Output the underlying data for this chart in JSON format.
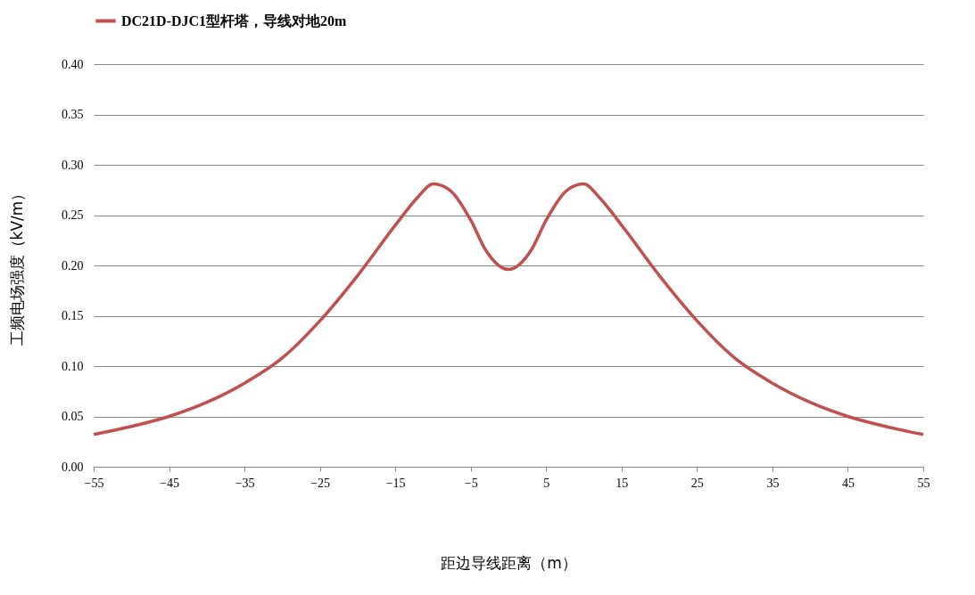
{
  "chart_data": {
    "type": "line",
    "xlabel": "距边导线距离（m）",
    "ylabel": "工频电场强度（kV/m）",
    "x": [
      -55,
      -50,
      -45,
      -40,
      -35,
      -30,
      -25,
      -20,
      -15,
      -12,
      -10,
      -8,
      -5,
      -3,
      0,
      3,
      5,
      8,
      10,
      12,
      15,
      20,
      25,
      30,
      35,
      40,
      45,
      50,
      55
    ],
    "series": [
      {
        "name": "DC21D-DJC1型杆塔，导线对地20m",
        "color": "#c0504d",
        "values": [
          0.032,
          0.04,
          0.05,
          0.064,
          0.083,
          0.108,
          0.145,
          0.19,
          0.24,
          0.268,
          0.281,
          0.276,
          0.245,
          0.215,
          0.196,
          0.215,
          0.245,
          0.276,
          0.281,
          0.268,
          0.24,
          0.19,
          0.145,
          0.108,
          0.083,
          0.064,
          0.05,
          0.04,
          0.032
        ]
      }
    ],
    "xlim": [
      -55,
      55
    ],
    "xticks": [
      -55,
      -45,
      -35,
      -25,
      -15,
      -5,
      5,
      15,
      25,
      35,
      45,
      55
    ],
    "ylim": [
      0,
      0.4
    ],
    "yticks": [
      {
        "value": 0,
        "label": "0.00"
      },
      0.05,
      {
        "value": 0.1,
        "label": "0.10"
      },
      0.15,
      {
        "value": 0.2,
        "label": "0.20"
      },
      0.25,
      {
        "value": 0.3,
        "label": "0.30"
      },
      0.35,
      {
        "value": 0.4,
        "label": "0.40"
      }
    ],
    "grid": "y",
    "legend": "top"
  }
}
